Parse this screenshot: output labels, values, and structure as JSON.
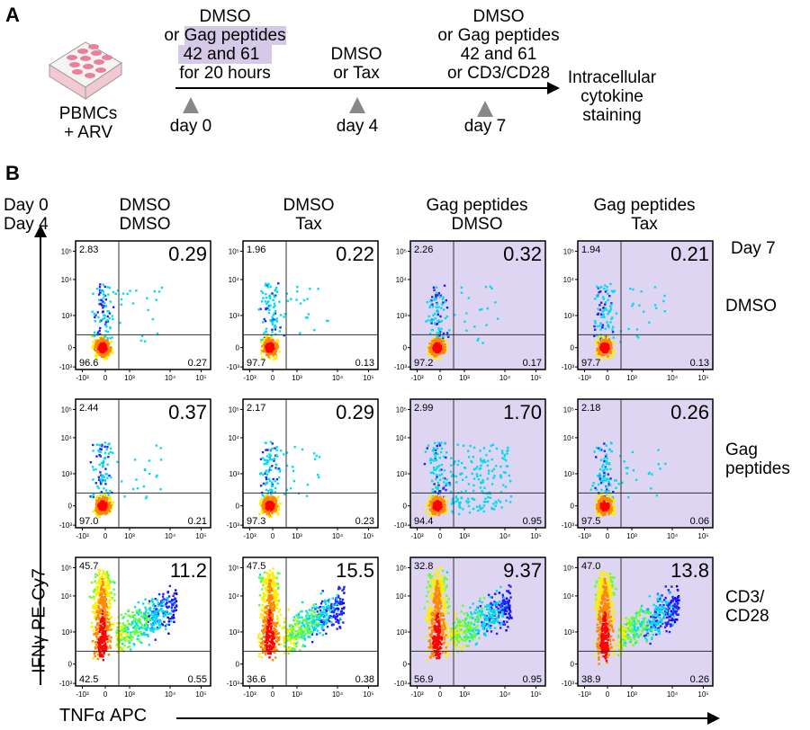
{
  "panel_a": {
    "letter": "A",
    "cells_label_1": "PBMCs",
    "cells_label_2": "+ ARV",
    "step1": [
      "DMSO",
      "or",
      "Gag peptides",
      "42 and 61",
      "for 20 hours"
    ],
    "step2": [
      "DMSO",
      "or Tax"
    ],
    "step3": [
      "DMSO",
      "or Gag peptides",
      "42 and 61",
      "or CD3/CD28"
    ],
    "days": [
      "day 0",
      "day 4",
      "day 7"
    ],
    "endpoint": [
      "Intracellular",
      "cytokine",
      "staining"
    ],
    "highlight_color": "#d5c9e8",
    "marker_color": "#888888"
  },
  "panel_b": {
    "letter": "B",
    "row_header_left": [
      "Day 0",
      "Day 4"
    ],
    "day7_label": "Day 7",
    "y_axis_label": "IFNγ PE-Cy7",
    "x_axis_label": "TNFα APC",
    "columns": [
      {
        "line1": "DMSO",
        "line2": "DMSO",
        "shaded": false
      },
      {
        "line1": "DMSO",
        "line2": "Tax",
        "shaded": false
      },
      {
        "line1": "Gag peptides",
        "line2": "DMSO",
        "shaded": true
      },
      {
        "line1": "Gag peptides",
        "line2": "Tax",
        "shaded": true
      }
    ],
    "rows": [
      {
        "label": [
          "DMSO"
        ]
      },
      {
        "label": [
          "Gag",
          "peptides"
        ]
      },
      {
        "label": [
          "CD3/",
          "CD28"
        ]
      }
    ],
    "shade_color": "#ddd5f1"
  },
  "chart_data": {
    "type": "scatter",
    "subtype": "flow-cytometry-quadrant-plots",
    "xlabel": "TNFα APC",
    "ylabel": "IFNγ PE-Cy7",
    "x_ticks": [
      "-10³",
      "0",
      "10³",
      "10⁴",
      "10⁵"
    ],
    "y_ticks": [
      "10⁵",
      "10⁴",
      "10³",
      "0",
      "-10³"
    ],
    "scale": "biexponential",
    "quadrant_order": [
      "upper-left",
      "upper-right",
      "lower-left",
      "lower-right"
    ],
    "plots": [
      [
        {
          "ul": "2.83",
          "ur": "0.29",
          "ll": "96.6",
          "lr": "0.27"
        },
        {
          "ul": "1.96",
          "ur": "0.22",
          "ll": "97.7",
          "lr": "0.13"
        },
        {
          "ul": "2.26",
          "ur": "0.32",
          "ll": "97.2",
          "lr": "0.17"
        },
        {
          "ul": "1.94",
          "ur": "0.21",
          "ll": "97.7",
          "lr": "0.13"
        }
      ],
      [
        {
          "ul": "2.44",
          "ur": "0.37",
          "ll": "97.0",
          "lr": "0.21"
        },
        {
          "ul": "2.17",
          "ur": "0.29",
          "ll": "97.3",
          "lr": "0.23"
        },
        {
          "ul": "2.99",
          "ur": "1.70",
          "ll": "94.4",
          "lr": "0.95"
        },
        {
          "ul": "2.18",
          "ur": "0.26",
          "ll": "97.5",
          "lr": "0.06"
        }
      ],
      [
        {
          "ul": "45.7",
          "ur": "11.2",
          "ll": "42.5",
          "lr": "0.55"
        },
        {
          "ul": "47.5",
          "ur": "15.5",
          "ll": "36.6",
          "lr": "0.38"
        },
        {
          "ul": "32.8",
          "ur": "9.37",
          "ll": "56.9",
          "lr": "0.95"
        },
        {
          "ul": "47.0",
          "ur": "13.8",
          "ll": "38.9",
          "lr": "0.26"
        }
      ]
    ]
  }
}
